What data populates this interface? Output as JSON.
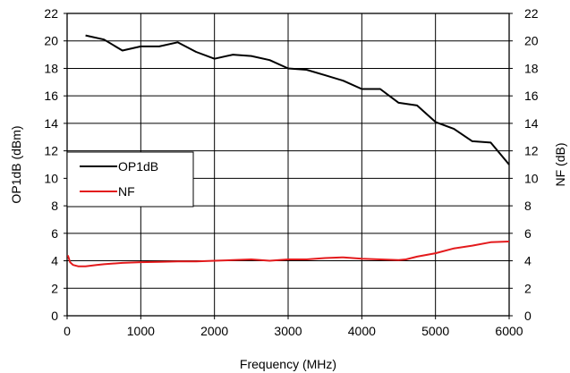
{
  "chart_data": {
    "type": "line",
    "title": "",
    "xlabel": "Frequency (MHz)",
    "ylabel_left": "OP1dB  (dBm)",
    "ylabel_right": "NF (dB)",
    "xlim": [
      0,
      6000
    ],
    "ylim_left": [
      0,
      22
    ],
    "ylim_right": [
      0,
      22
    ],
    "x_ticks": [
      0,
      1000,
      2000,
      3000,
      4000,
      5000,
      6000
    ],
    "y_ticks": [
      0,
      2,
      4,
      6,
      8,
      10,
      12,
      14,
      16,
      18,
      20,
      22
    ],
    "grid": "horizontal",
    "legend_position": "left-middle",
    "series": [
      {
        "name": "OP1dB",
        "color": "#000000",
        "axis": "left",
        "x": [
          250,
          500,
          750,
          1000,
          1250,
          1500,
          1750,
          2000,
          2250,
          2500,
          2750,
          3000,
          3250,
          3500,
          3750,
          4000,
          4250,
          4500,
          4750,
          5000,
          5250,
          5500,
          5750,
          6000
        ],
        "values": [
          20.4,
          20.1,
          19.3,
          19.6,
          19.6,
          19.9,
          19.2,
          18.7,
          19.0,
          18.9,
          18.6,
          18.0,
          17.9,
          17.5,
          17.1,
          16.5,
          16.5,
          15.5,
          15.3,
          14.1,
          13.6,
          12.7,
          12.6,
          11.0
        ]
      },
      {
        "name": "NF",
        "color": "#e31a1c",
        "axis": "right",
        "x": [
          10,
          40,
          80,
          150,
          250,
          400,
          500,
          750,
          1000,
          1250,
          1500,
          1750,
          2000,
          2250,
          2500,
          2750,
          3000,
          3250,
          3500,
          3750,
          4000,
          4250,
          4500,
          4600,
          4750,
          5000,
          5250,
          5500,
          5750,
          6000
        ],
        "values": [
          4.4,
          3.9,
          3.7,
          3.6,
          3.6,
          3.7,
          3.75,
          3.85,
          3.9,
          3.92,
          3.95,
          3.95,
          4.0,
          4.05,
          4.1,
          4.0,
          4.1,
          4.1,
          4.2,
          4.25,
          4.15,
          4.1,
          4.05,
          4.1,
          4.3,
          4.55,
          4.9,
          5.1,
          5.35,
          5.4
        ]
      }
    ]
  }
}
